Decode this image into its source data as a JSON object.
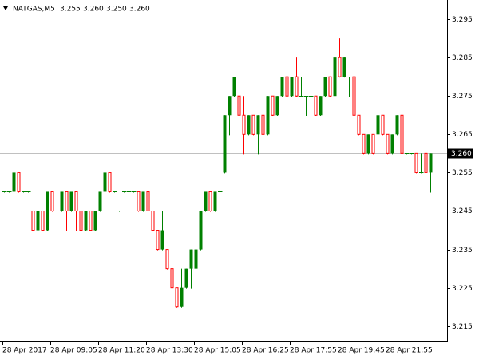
{
  "chart_data": {
    "type": "candlestick",
    "header": {
      "symbol": "NATGAS,M5",
      "ohlc": [
        "3.255",
        "3.260",
        "3.250",
        "3.260"
      ]
    },
    "categories": [
      "28 Apr 2017",
      null,
      null,
      null,
      null,
      null,
      null,
      null,
      null,
      null,
      "28 Apr 09:05",
      null,
      null,
      null,
      null,
      null,
      null,
      null,
      null,
      null,
      "28 Apr 11:20",
      null,
      null,
      null,
      null,
      null,
      null,
      null,
      null,
      null,
      "28 Apr 13:30",
      null,
      null,
      null,
      null,
      null,
      null,
      null,
      null,
      null,
      "28 Apr 15:05",
      null,
      null,
      null,
      null,
      null,
      null,
      null,
      null,
      null,
      "28 Apr 16:25",
      null,
      null,
      null,
      null,
      null,
      null,
      null,
      null,
      null,
      "28 Apr 17:55",
      null,
      null,
      null,
      null,
      null,
      null,
      null,
      null,
      null,
      "28 Apr 19:45",
      null,
      null,
      null,
      null,
      null,
      null,
      null,
      null,
      null,
      "28 Apr 21:55",
      null,
      null,
      null,
      null,
      null,
      null,
      null,
      null,
      null
    ],
    "open": [
      3.25,
      3.25,
      3.25,
      3.255,
      3.25,
      3.25,
      3.245,
      3.24,
      3.245,
      3.24,
      3.25,
      3.245,
      3.245,
      3.25,
      3.245,
      3.25,
      3.245,
      3.24,
      3.245,
      3.24,
      3.245,
      3.25,
      3.255,
      3.25,
      3.245,
      3.25,
      3.25,
      3.25,
      3.25,
      3.245,
      3.25,
      3.245,
      3.24,
      3.235,
      3.235,
      3.23,
      3.225,
      3.22,
      3.225,
      3.23,
      3.23,
      3.235,
      3.245,
      3.25,
      3.245,
      3.25,
      3.255,
      3.27,
      3.275,
      3.275,
      3.27,
      3.265,
      3.27,
      3.265,
      3.27,
      3.265,
      3.275,
      3.27,
      3.275,
      3.28,
      3.275,
      3.28,
      3.275,
      3.275,
      3.275,
      3.275,
      3.27,
      3.275,
      3.28,
      3.275,
      3.285,
      3.28,
      3.28,
      3.28,
      3.27,
      3.265,
      3.26,
      3.265,
      3.265,
      3.27,
      3.265,
      3.26,
      3.265,
      3.27,
      3.26,
      3.26,
      3.26,
      3.255,
      3.26,
      3.255
    ],
    "high": [
      3.25,
      3.25,
      3.255,
      3.255,
      3.25,
      3.25,
      3.245,
      3.245,
      3.245,
      3.25,
      3.25,
      3.245,
      3.25,
      3.25,
      3.25,
      3.25,
      3.245,
      3.245,
      3.245,
      3.245,
      3.25,
      3.255,
      3.255,
      3.25,
      3.245,
      3.25,
      3.25,
      3.25,
      3.25,
      3.25,
      3.25,
      3.245,
      3.24,
      3.245,
      3.235,
      3.23,
      3.225,
      3.23,
      3.23,
      3.235,
      3.235,
      3.245,
      3.25,
      3.25,
      3.25,
      3.25,
      3.27,
      3.275,
      3.28,
      3.275,
      3.275,
      3.27,
      3.27,
      3.27,
      3.27,
      3.275,
      3.275,
      3.275,
      3.28,
      3.28,
      3.28,
      3.285,
      3.28,
      3.275,
      3.28,
      3.275,
      3.275,
      3.28,
      3.28,
      3.285,
      3.29,
      3.285,
      3.28,
      3.28,
      3.27,
      3.265,
      3.265,
      3.265,
      3.27,
      3.27,
      3.265,
      3.265,
      3.27,
      3.27,
      3.26,
      3.26,
      3.26,
      3.26,
      3.26,
      3.26
    ],
    "low": [
      3.25,
      3.25,
      3.25,
      3.25,
      3.25,
      3.25,
      3.24,
      3.24,
      3.24,
      3.24,
      3.245,
      3.24,
      3.245,
      3.24,
      3.245,
      3.24,
      3.24,
      3.24,
      3.24,
      3.24,
      3.245,
      3.25,
      3.25,
      3.25,
      3.245,
      3.25,
      3.25,
      3.25,
      3.245,
      3.245,
      3.245,
      3.24,
      3.235,
      3.235,
      3.23,
      3.225,
      3.22,
      3.22,
      3.225,
      3.225,
      3.23,
      3.235,
      3.245,
      3.245,
      3.245,
      3.245,
      3.255,
      3.265,
      3.275,
      3.27,
      3.26,
      3.265,
      3.265,
      3.26,
      3.265,
      3.265,
      3.27,
      3.27,
      3.275,
      3.27,
      3.275,
      3.275,
      3.275,
      3.27,
      3.27,
      3.27,
      3.27,
      3.275,
      3.275,
      3.275,
      3.28,
      3.28,
      3.275,
      3.27,
      3.265,
      3.26,
      3.26,
      3.26,
      3.265,
      3.265,
      3.26,
      3.26,
      3.265,
      3.26,
      3.26,
      3.26,
      3.255,
      3.255,
      3.25,
      3.25
    ],
    "close": [
      3.25,
      3.25,
      3.255,
      3.25,
      3.25,
      3.25,
      3.24,
      3.245,
      3.24,
      3.25,
      3.245,
      3.245,
      3.25,
      3.245,
      3.25,
      3.245,
      3.24,
      3.245,
      3.24,
      3.245,
      3.25,
      3.255,
      3.25,
      3.25,
      3.245,
      3.25,
      3.25,
      3.25,
      3.245,
      3.25,
      3.245,
      3.24,
      3.235,
      3.24,
      3.23,
      3.225,
      3.22,
      3.225,
      3.23,
      3.235,
      3.235,
      3.245,
      3.25,
      3.245,
      3.25,
      3.25,
      3.27,
      3.275,
      3.28,
      3.27,
      3.265,
      3.27,
      3.265,
      3.27,
      3.265,
      3.275,
      3.27,
      3.275,
      3.28,
      3.275,
      3.28,
      3.275,
      3.275,
      3.275,
      3.275,
      3.27,
      3.275,
      3.28,
      3.275,
      3.285,
      3.28,
      3.285,
      3.28,
      3.27,
      3.265,
      3.26,
      3.265,
      3.26,
      3.27,
      3.265,
      3.26,
      3.265,
      3.27,
      3.26,
      3.26,
      3.26,
      3.255,
      3.255,
      3.255,
      3.26
    ],
    "up_color": "#008000",
    "down_color": "#ff0000",
    "last_price": {
      "value": 3.26,
      "label": "3.260"
    },
    "ylim": [
      3.211,
      3.3
    ],
    "yticks": [
      3.215,
      3.225,
      3.235,
      3.245,
      3.255,
      3.265,
      3.275,
      3.285,
      3.295
    ]
  }
}
